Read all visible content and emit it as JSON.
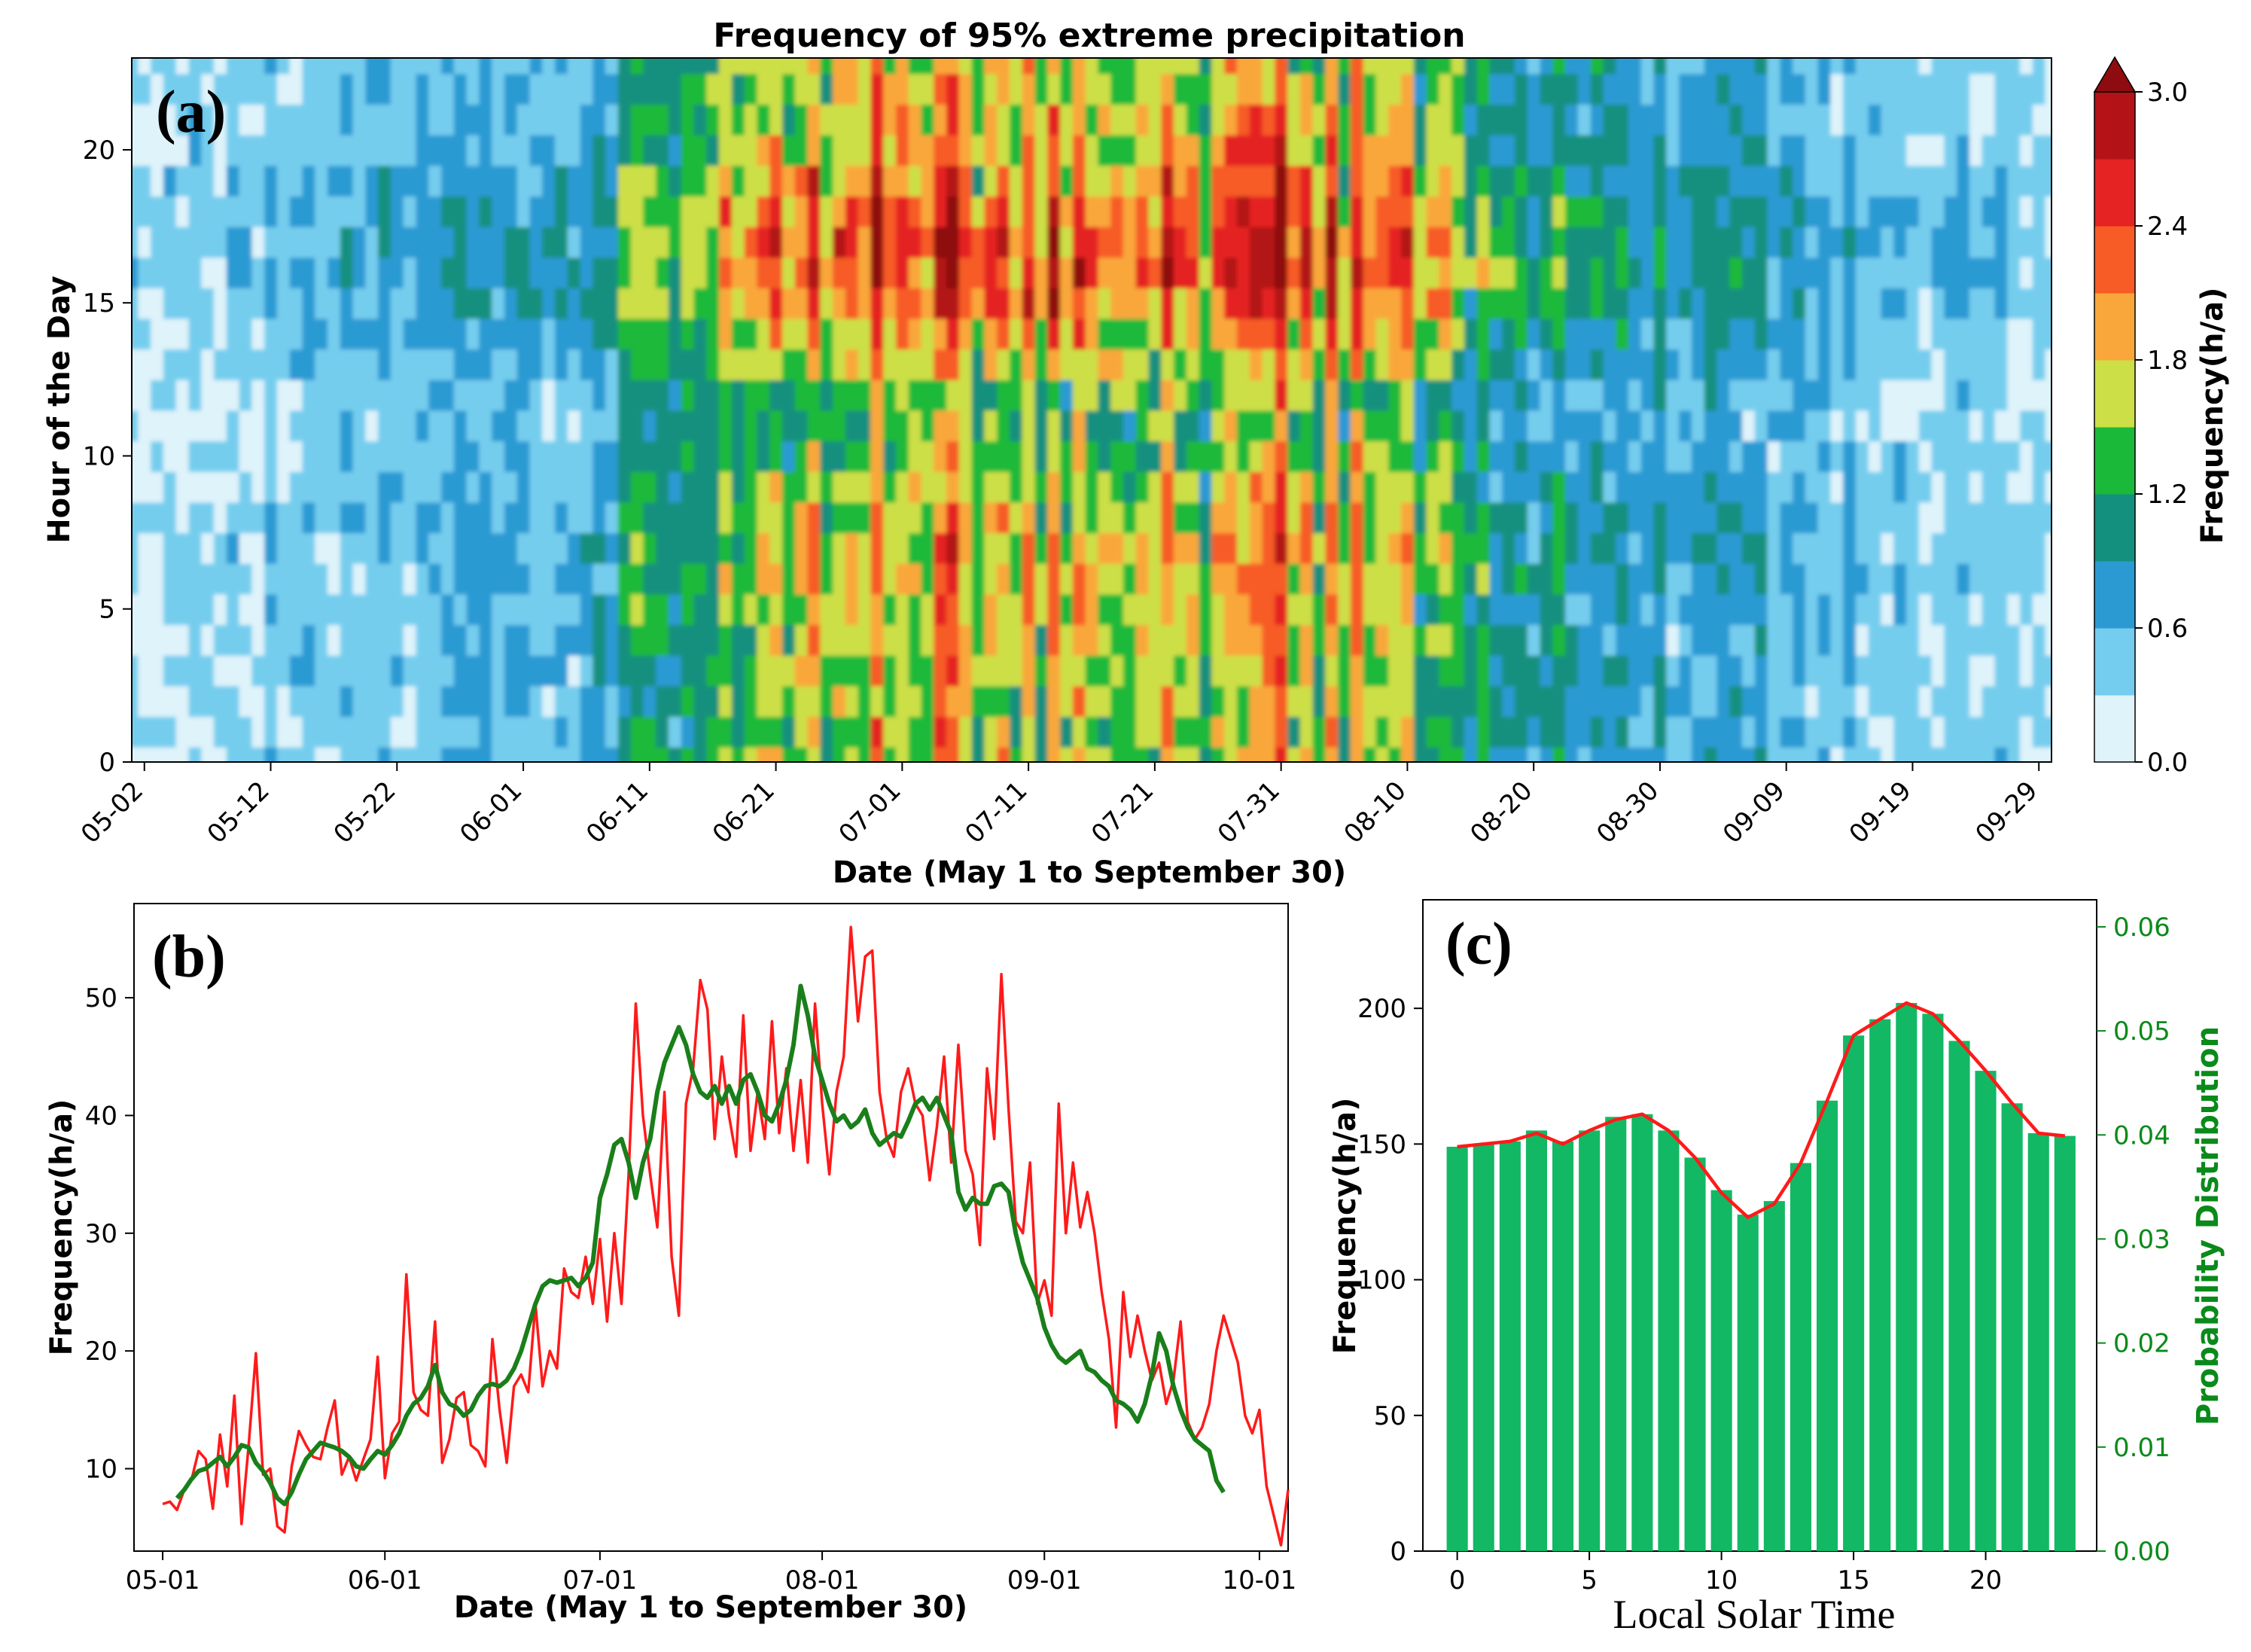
{
  "figure": {
    "panel_a": {
      "label": "(a)",
      "title": "Frequency of 95% extreme precipitation",
      "xlabel": "Date (May 1 to September 30)",
      "ylabel": "Hour of the Day",
      "xticks": [
        "05-02",
        "05-12",
        "05-22",
        "06-01",
        "06-11",
        "06-21",
        "07-01",
        "07-11",
        "07-21",
        "07-31",
        "08-10",
        "08-20",
        "08-30",
        "09-09",
        "09-19",
        "09-29"
      ],
      "yticks": [
        "0",
        "5",
        "10",
        "15",
        "20"
      ],
      "colorbar": {
        "label": "Frequency(h/a)",
        "ticks": [
          "0.0",
          "0.6",
          "1.2",
          "1.8",
          "2.4",
          "3.0"
        ],
        "colors": [
          "#dff3fa",
          "#74cdee",
          "#2b9ad3",
          "#13907e",
          "#1ab93a",
          "#cddf46",
          "#f9a73a",
          "#f75b26",
          "#e52323",
          "#b31317",
          "#8e0c0f"
        ]
      }
    },
    "panel_b": {
      "label": "(b)",
      "xlabel": "Date (May 1 to September 30)",
      "ylabel": "Frequency(h/a)",
      "xticks": [
        "05-01",
        "06-01",
        "07-01",
        "08-01",
        "09-01",
        "10-01"
      ],
      "yticks": [
        "10",
        "20",
        "30",
        "40",
        "50"
      ]
    },
    "panel_c": {
      "label": "(c)",
      "xlabel": "Local Solar Time",
      "ylabel_left": "Frequency(h/a)",
      "ylabel_right": "Probability Distribution",
      "xticks": [
        "0",
        "5",
        "10",
        "15",
        "20"
      ],
      "yticks_left": [
        "0",
        "50",
        "100",
        "150",
        "200"
      ],
      "yticks_right": [
        "0.00",
        "0.01",
        "0.02",
        "0.03",
        "0.04",
        "0.05",
        "0.06"
      ]
    }
  },
  "colors": {
    "daily_line": "#ff1a1a",
    "smooth_line": "#1a7f1a",
    "bar": "#13b865",
    "right_axis": "#0a8a1a"
  },
  "chart_data": [
    {
      "type": "heatmap",
      "title": "Frequency of 95% extreme precipitation",
      "xlabel": "Date (May 1 to September 30)",
      "ylabel": "Hour of the Day",
      "x_range_days": [
        1,
        153
      ],
      "y_range_hours": [
        0,
        23
      ],
      "levels": [
        0.0,
        0.3,
        0.6,
        0.9,
        1.2,
        1.5,
        1.8,
        2.1,
        2.4,
        2.7,
        3.0
      ],
      "colorbar_label": "Frequency(h/a)",
      "day_profile": [
        0.35,
        0.4,
        0.45,
        0.55,
        0.6,
        0.75,
        0.9,
        1.3,
        1.6,
        2.1,
        2.2,
        2.0,
        2.1,
        2.2,
        1.9,
        2.2,
        1.8,
        1.6,
        1.3,
        1.0,
        0.8,
        0.75,
        0.6,
        0.55,
        0.45,
        0.35
      ],
      "hour_profile": [
        0.85,
        0.82,
        0.8,
        0.82,
        0.85,
        0.88,
        0.9,
        0.92,
        0.88,
        0.82,
        0.75,
        0.7,
        0.72,
        0.85,
        0.98,
        1.12,
        1.2,
        1.22,
        1.15,
        1.05,
        0.95,
        0.88,
        0.86,
        0.85
      ]
    },
    {
      "type": "line",
      "xlabel": "Date (May 1 to September 30)",
      "ylabel": "Frequency(h/a)",
      "x_start": "05-01",
      "xlim_days": [
        -4,
        157
      ],
      "ylim": [
        3,
        58
      ],
      "series": [
        {
          "name": "daily",
          "x_start_day": 0,
          "values": [
            7.0,
            7.2,
            6.5,
            8.2,
            9.0,
            11.5,
            10.8,
            6.6,
            12.9,
            8.5,
            16.2,
            5.3,
            12.0,
            19.8,
            9.5,
            10.0,
            5.1,
            4.6,
            10.2,
            13.2,
            12.0,
            11.0,
            10.8,
            13.5,
            15.8,
            9.5,
            11.0,
            9.0,
            10.8,
            12.5,
            19.5,
            9.2,
            13.0,
            14.0,
            26.5,
            16.5,
            15.0,
            14.5,
            22.5,
            10.5,
            12.5,
            16.0,
            16.5,
            12.0,
            11.5,
            10.2,
            21.0,
            15.0,
            10.5,
            17.0,
            18.0,
            16.5,
            24.0,
            17.0,
            20.0,
            18.5,
            27.0,
            25.0,
            24.5,
            28.0,
            24.0,
            29.5,
            22.5,
            30.0,
            24.0,
            35.0,
            49.5,
            40.0,
            35.0,
            30.5,
            42.0,
            28.0,
            23.0,
            41.0,
            44.0,
            51.5,
            49.0,
            38.0,
            45.0,
            40.0,
            36.5,
            48.5,
            37.0,
            42.0,
            38.0,
            48.0,
            38.5,
            44.0,
            37.0,
            43.0,
            36.0,
            49.5,
            41.0,
            35.0,
            42.0,
            45.0,
            56.0,
            48.0,
            53.5,
            54.0,
            42.0,
            38.0,
            36.5,
            42.0,
            44.0,
            41.0,
            40.0,
            34.5,
            39.0,
            45.0,
            36.0,
            46.0,
            37.0,
            35.0,
            29.0,
            44.0,
            38.0,
            52.0,
            40.5,
            31.0,
            30.0,
            36.0,
            24.0,
            26.0,
            23.0,
            41.0,
            30.0,
            36.0,
            30.5,
            33.5,
            30.0,
            25.0,
            21.0,
            13.5,
            25.0,
            19.5,
            23.0,
            20.0,
            17.5,
            19.0,
            15.5,
            17.5,
            22.5,
            14.0,
            12.5,
            13.5,
            15.5,
            20.0,
            23.0,
            21.0,
            19.0,
            14.5,
            13.0,
            15.0,
            8.5,
            6.0,
            3.5,
            8.2
          ]
        },
        {
          "name": "smoothed",
          "x_start_day": 2,
          "values": [
            7.5,
            8.2,
            9.1,
            9.8,
            10.0,
            10.5,
            11.0,
            10.2,
            11.0,
            12.0,
            11.8,
            10.5,
            9.8,
            8.8,
            7.5,
            7.0,
            8.0,
            9.5,
            10.8,
            11.5,
            12.2,
            12.0,
            11.8,
            11.5,
            11.0,
            10.2,
            10.0,
            10.8,
            11.5,
            11.2,
            12.0,
            13.0,
            14.5,
            15.5,
            16.0,
            17.0,
            18.8,
            16.5,
            15.5,
            15.2,
            14.5,
            15.0,
            16.2,
            17.0,
            17.2,
            17.0,
            17.5,
            18.5,
            20.0,
            22.0,
            24.0,
            25.5,
            26.0,
            25.8,
            26.0,
            26.2,
            25.5,
            26.2,
            27.5,
            33.0,
            35.0,
            37.5,
            38.0,
            36.0,
            33.0,
            36.0,
            38.0,
            42.0,
            44.5,
            46.0,
            47.5,
            46.0,
            43.5,
            42.0,
            41.5,
            42.5,
            41.0,
            42.5,
            41.0,
            43.0,
            43.5,
            42.0,
            40.0,
            39.5,
            41.0,
            43.0,
            46.0,
            51.0,
            48.5,
            45.0,
            43.0,
            41.0,
            39.5,
            40.0,
            39.0,
            39.5,
            40.5,
            38.5,
            37.5,
            38.0,
            38.5,
            38.2,
            39.5,
            41.0,
            41.5,
            40.5,
            41.5,
            40.0,
            38.5,
            33.5,
            32.0,
            33.0,
            32.5,
            32.5,
            34.0,
            34.2,
            33.5,
            30.0,
            27.5,
            26.0,
            24.5,
            22.0,
            20.5,
            19.5,
            19.0,
            19.5,
            20.0,
            18.5,
            18.2,
            17.5,
            17.0,
            15.8,
            15.5,
            15.0,
            14.0,
            15.5,
            18.0,
            21.5,
            20.0,
            17.0,
            15.0,
            13.5,
            12.5,
            12.0,
            11.5,
            9.0,
            8.0
          ]
        }
      ]
    },
    {
      "type": "bar",
      "xlabel": "Local Solar Time",
      "ylabel": "Frequency(h/a)",
      "ylabel_right": "Probability Distribution",
      "categories": [
        0,
        1,
        2,
        3,
        4,
        5,
        6,
        7,
        8,
        9,
        10,
        11,
        12,
        13,
        14,
        15,
        16,
        17,
        18,
        19,
        20,
        21,
        22,
        23
      ],
      "values": [
        149,
        150,
        151,
        155,
        151,
        155,
        160,
        161,
        155,
        145,
        133,
        124,
        129,
        143,
        166,
        190,
        196,
        202,
        198,
        188,
        177,
        165,
        154,
        153
      ],
      "line_values": [
        149,
        150,
        151,
        154,
        150,
        155,
        159,
        161,
        155,
        145,
        132,
        123,
        128,
        143,
        166,
        190,
        196,
        202,
        198,
        188,
        177,
        165,
        154,
        153
      ],
      "xlim": [
        -1.3,
        24.2
      ],
      "ylim": [
        0,
        240
      ],
      "ylim_right": [
        0,
        0.0626
      ]
    }
  ]
}
